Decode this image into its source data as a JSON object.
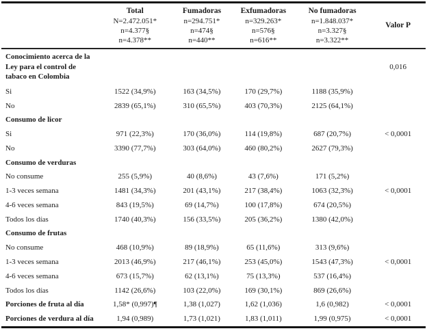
{
  "table": {
    "header": {
      "cols": [
        {
          "title": "Total",
          "lines": [
            "N=2.472.051*",
            "n=4.377§",
            "n=4.378**"
          ]
        },
        {
          "title": "Fumadoras",
          "lines": [
            "n=294.751*",
            "n=474§",
            "n=440**"
          ]
        },
        {
          "title": "Exfumadoras",
          "lines": [
            "n=329.263*",
            "n=576§",
            "n=616**"
          ]
        },
        {
          "title": "No fumadoras",
          "lines": [
            "n=1.848.037*",
            "n=3.327§",
            "n=3.322**"
          ]
        }
      ],
      "p_label": "Valor P"
    },
    "rows": [
      {
        "label": "Conocimiento acerca de la Ley para el control de tabaco en Colombia",
        "bold": true,
        "values": [
          "",
          "",
          "",
          ""
        ],
        "p": "0,016",
        "pBottom": true
      },
      {
        "label": "Si",
        "bold": false,
        "values": [
          "1522 (34,9%)",
          "163 (34,5%)",
          "170 (29,7%)",
          "1188 (35,9%)"
        ],
        "p": ""
      },
      {
        "label": "No",
        "bold": false,
        "values": [
          "2839 (65,1%)",
          "310 (65,5%)",
          "403 (70,3%)",
          "2125 (64,1%)"
        ],
        "p": ""
      },
      {
        "label": "Consumo de licor",
        "bold": true,
        "values": [
          "",
          "",
          "",
          ""
        ],
        "p": ""
      },
      {
        "label": "Si",
        "bold": false,
        "values": [
          "971 (22,3%)",
          "170 (36,0%)",
          "114 (19,8%)",
          "687 (20,7%)"
        ],
        "p": "< 0,0001"
      },
      {
        "label": "No",
        "bold": false,
        "values": [
          "3390 (77,7%)",
          "303 (64,0%)",
          "460 (80,2%)",
          "2627 (79,3%)"
        ],
        "p": ""
      },
      {
        "label": "Consumo de verduras",
        "bold": true,
        "values": [
          "",
          "",
          "",
          ""
        ],
        "p": ""
      },
      {
        "label": "No consume",
        "bold": false,
        "values": [
          "255 (5,9%)",
          "40 (8,6%)",
          "43 (7,6%)",
          "171 (5,2%)"
        ],
        "p": ""
      },
      {
        "label": "1-3 veces semana",
        "bold": false,
        "values": [
          "1481 (34,3%)",
          "201 (43,1%)",
          "217 (38,4%)",
          "1063 (32,3%)"
        ],
        "p": "< 0,0001"
      },
      {
        "label": "4-6 veces semana",
        "bold": false,
        "values": [
          "843 (19,5%)",
          "69 (14,7%)",
          "100 (17,8%)",
          "674 (20,5%)"
        ],
        "p": ""
      },
      {
        "label": "Todos los días",
        "bold": false,
        "values": [
          "1740 (40,3%)",
          "156 (33,5%)",
          "205 (36,2%)",
          "1380 (42,0%)"
        ],
        "p": ""
      },
      {
        "label": "Consumo de frutas",
        "bold": true,
        "values": [
          "",
          "",
          "",
          ""
        ],
        "p": ""
      },
      {
        "label": "No consume",
        "bold": false,
        "values": [
          "468 (10,9%)",
          "89 (18,9%)",
          "65 (11,6%)",
          "313 (9,6%)"
        ],
        "p": ""
      },
      {
        "label": "1-3 veces semana",
        "bold": false,
        "values": [
          "2013 (46,9%)",
          "217 (46,1%)",
          "253 (45,0%)",
          "1543 (47,3%)"
        ],
        "p": "< 0,0001"
      },
      {
        "label": "4-6 veces semana",
        "bold": false,
        "values": [
          "673 (15,7%)",
          "62 (13,1%)",
          "75 (13,3%)",
          "537 (16,4%)"
        ],
        "p": ""
      },
      {
        "label": "Todos los días",
        "bold": false,
        "values": [
          "1142 (26,6%)",
          "103 (22,0%)",
          "169 (30,1%)",
          "869 (26,6%)"
        ],
        "p": ""
      },
      {
        "label": "Porciones de fruta al día",
        "bold": true,
        "values": [
          "1,58* (0,997)¶",
          "1,38 (1,027)",
          "1,62 (1,036)",
          "1,6 (0,982)"
        ],
        "p": "< 0,0001"
      },
      {
        "label": "Porciones de verdura al día",
        "bold": true,
        "values": [
          "1,94 (0,989)",
          "1,73 (1,021)",
          "1,83 (1,011)",
          "1,99 (0,975)"
        ],
        "p": "< 0,0001"
      }
    ]
  }
}
